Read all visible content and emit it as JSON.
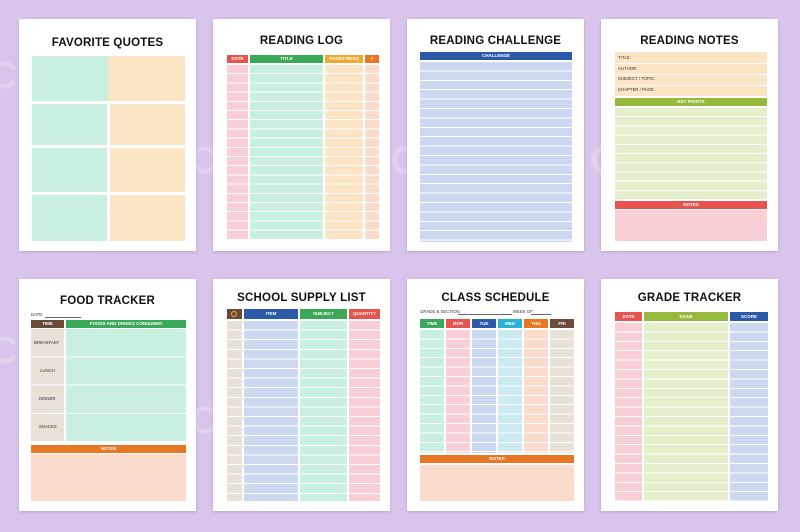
{
  "watermark": "CraftNest",
  "colors": {
    "background": "#d9c5ec",
    "mint": "#c9efe0",
    "peach": "#fbe5c4",
    "blue": "#cbd8f0",
    "green": "#e6efcc",
    "pink": "#f8cfd5",
    "salmon": "#fbdccc",
    "red": "#e8534f",
    "dark_green": "#3aa856",
    "orange": "#e87724",
    "navy": "#2d5aa8",
    "olive": "#95ba3c"
  },
  "pages": {
    "favorite_quotes": {
      "title": "FAVORITE QUOTES"
    },
    "reading_log": {
      "title": "READING LOG",
      "columns": [
        "DATE",
        "TITLE",
        "PAGES READ",
        "✓"
      ]
    },
    "reading_challenge": {
      "title": "READING CHALLENGE",
      "header": "CHALLENGE"
    },
    "reading_notes": {
      "title": "READING NOTES",
      "fields": [
        "TITLE:",
        "AUTHOR:",
        "SUBJECT / TOPIC:",
        "CHAPTER / PAGE:"
      ],
      "key_points": "KEY POINTS",
      "notes": "NOTES"
    },
    "food_tracker": {
      "title": "FOOD TRACKER",
      "date_label": "DATE:",
      "columns": [
        "TIME",
        "FOODS AND DRINKS CONSUMED"
      ],
      "meals": [
        "BREAKFAST",
        "LUNCH",
        "DINNER",
        "SNACKS"
      ],
      "notes": "NOTES"
    },
    "school_supply": {
      "title": "SCHOOL SUPPLY LIST",
      "check_icon": "check-circle-icon",
      "columns": [
        "ITEM",
        "SUBJECT",
        "QUANTITY"
      ]
    },
    "class_schedule": {
      "title": "CLASS SCHEDULE",
      "grade_label": "GRADE & SECTION:",
      "week_label": "WEEK OF:",
      "columns": [
        "TIME",
        "MON",
        "TUE",
        "WED",
        "THU",
        "FRI"
      ],
      "notes": "NOTES"
    },
    "grade_tracker": {
      "title": "GRADE TRACKER",
      "columns": [
        "DATE",
        "EXAM",
        "SCORE"
      ]
    }
  }
}
